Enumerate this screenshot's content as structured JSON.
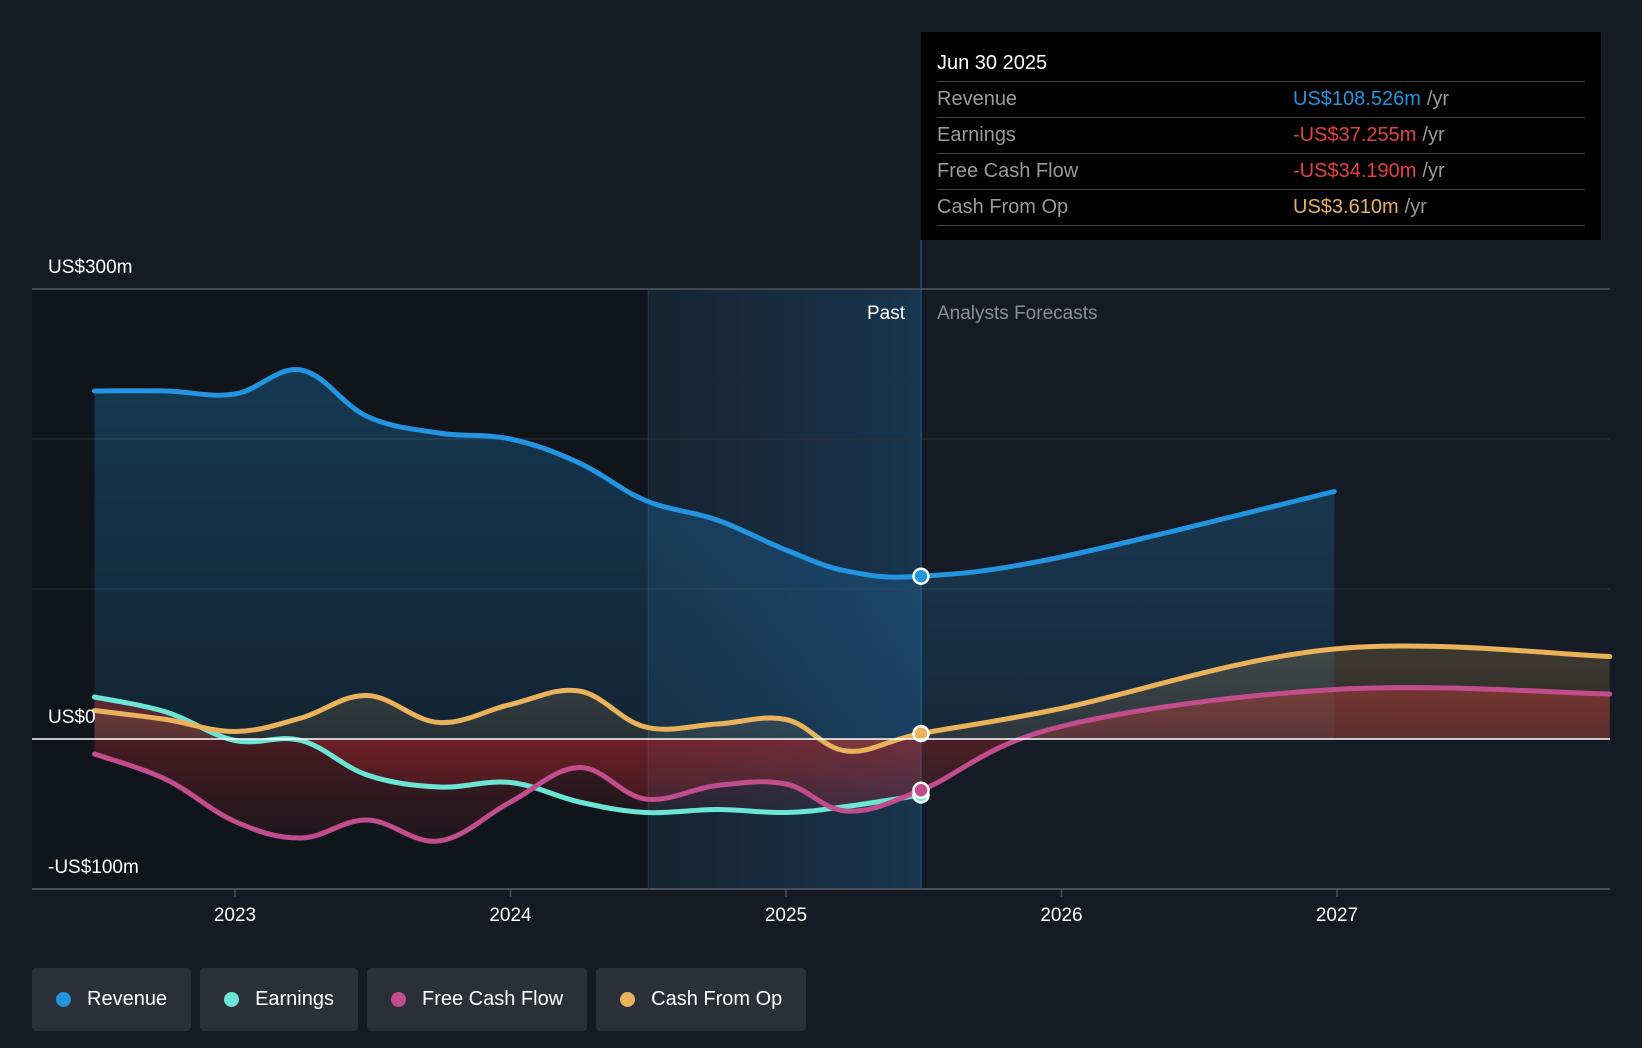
{
  "tooltip": {
    "date": "Jun 30 2025",
    "rows": [
      {
        "name": "Revenue",
        "value": "US$108.526m",
        "unit": "/yr",
        "color": "#2394df"
      },
      {
        "name": "Earnings",
        "value": "-US$37.255m",
        "unit": "/yr",
        "color": "#e64141"
      },
      {
        "name": "Free Cash Flow",
        "value": "-US$34.190m",
        "unit": "/yr",
        "color": "#e64141"
      },
      {
        "name": "Cash From Op",
        "value": "US$3.610m",
        "unit": "/yr",
        "color": "#e9b25b"
      }
    ]
  },
  "regions": {
    "past_label": "Past",
    "forecast_label": "Analysts Forecasts"
  },
  "legend": [
    {
      "label": "Revenue",
      "color": "#2394df"
    },
    {
      "label": "Earnings",
      "color": "#6ce5d4"
    },
    {
      "label": "Free Cash Flow",
      "color": "#c24d8c"
    },
    {
      "label": "Cash From Op",
      "color": "#e9b25b"
    }
  ],
  "chart_data": {
    "type": "area",
    "title": "",
    "xlabel": "",
    "ylabel": "",
    "y_unit": "US$ millions",
    "ylim": [
      -100,
      300
    ],
    "xlim": [
      2022.25,
      2028.0
    ],
    "y_tick_labels": [
      {
        "value": 300,
        "label": "US$300m"
      },
      {
        "value": 0,
        "label": "US$0"
      },
      {
        "value": -100,
        "label": "-US$100m"
      }
    ],
    "y_gridlines": [
      300,
      200,
      100,
      0,
      -100
    ],
    "x_ticks": [
      {
        "value": 2023,
        "label": "2023"
      },
      {
        "value": 2024,
        "label": "2024"
      },
      {
        "value": 2025,
        "label": "2025"
      },
      {
        "value": 2026,
        "label": "2026"
      },
      {
        "value": 2027,
        "label": "2027"
      }
    ],
    "past_shaded_start": 2024.5,
    "present": 2025.49,
    "grid": true,
    "legend_position": "bottom-left",
    "series": [
      {
        "name": "Revenue",
        "color": "#2394df",
        "x": [
          2022.49,
          2022.75,
          2023.0,
          2023.24,
          2023.48,
          2023.74,
          2024.0,
          2024.25,
          2024.49,
          2024.75,
          2025.0,
          2025.22,
          2025.49,
          2025.99,
          2026.99
        ],
        "values": [
          232,
          232,
          230,
          246,
          215,
          204,
          200,
          184,
          159,
          146,
          126,
          112,
          108.5,
          121,
          165
        ]
      },
      {
        "name": "Earnings",
        "color": "#6ce5d4",
        "x": [
          2022.49,
          2022.75,
          2023.0,
          2023.24,
          2023.48,
          2023.74,
          2024.0,
          2024.25,
          2024.49,
          2024.75,
          2025.0,
          2025.22,
          2025.49
        ],
        "values": [
          28,
          18,
          -1,
          -1,
          -24,
          -32,
          -29,
          -42,
          -49,
          -47,
          -49,
          -45,
          -37.3
        ]
      },
      {
        "name": "Free Cash Flow",
        "color": "#c24d8c",
        "x": [
          2022.49,
          2022.75,
          2023.0,
          2023.24,
          2023.48,
          2023.74,
          2024.0,
          2024.25,
          2024.49,
          2024.75,
          2025.0,
          2025.22,
          2025.49,
          2025.99,
          2026.99,
          2027.99
        ],
        "values": [
          -10,
          -27,
          -55,
          -66,
          -54,
          -68,
          -42,
          -19,
          -40,
          -31,
          -30,
          -48,
          -34.2,
          8,
          33,
          30
        ]
      },
      {
        "name": "Cash From Op",
        "color": "#e9b25b",
        "x": [
          2022.49,
          2022.75,
          2023.0,
          2023.24,
          2023.48,
          2023.74,
          2024.0,
          2024.25,
          2024.49,
          2024.75,
          2025.0,
          2025.22,
          2025.49,
          2025.99,
          2026.99,
          2027.99
        ],
        "values": [
          19,
          13,
          5,
          14,
          29,
          11,
          23,
          32,
          8,
          10,
          13,
          -8,
          3.6,
          20,
          60,
          55
        ]
      }
    ]
  }
}
